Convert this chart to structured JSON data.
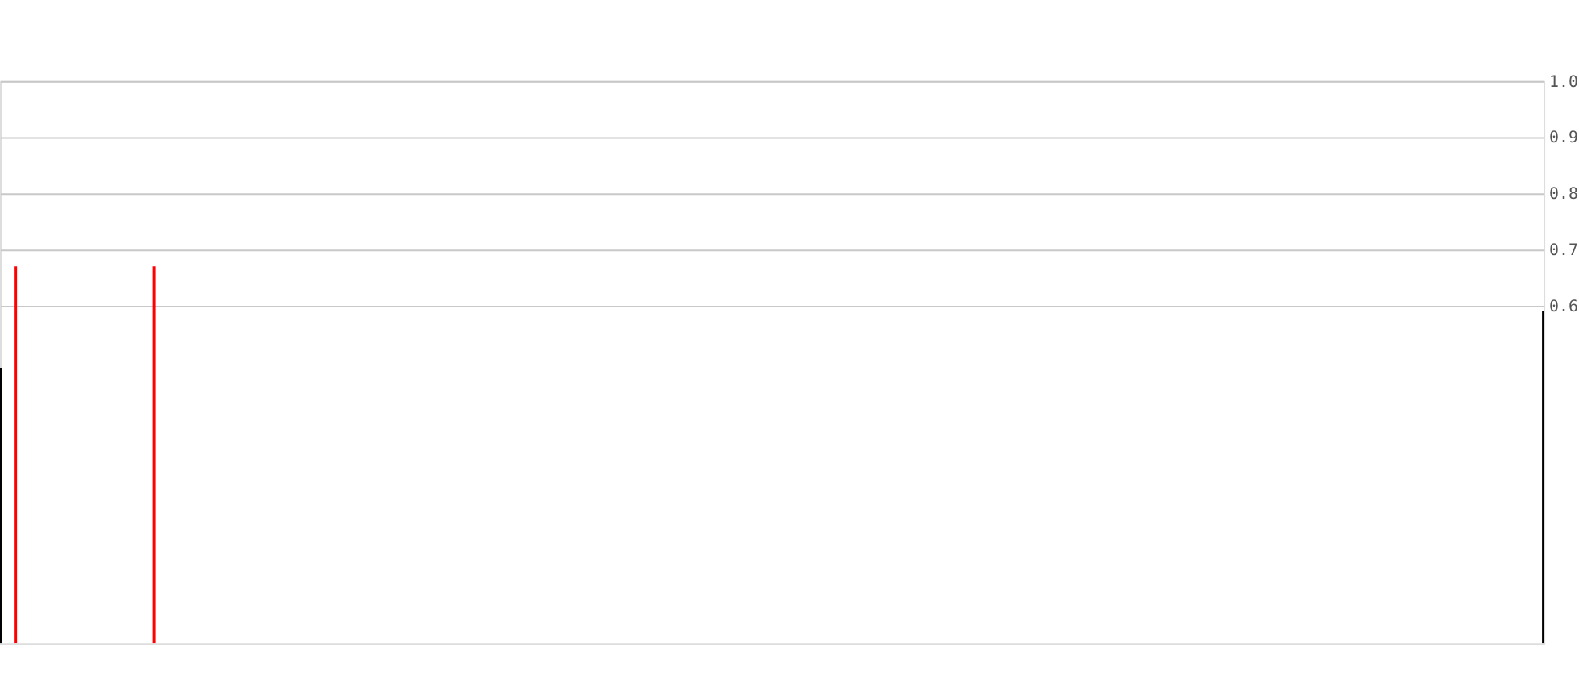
{
  "chart_data": {
    "type": "bar",
    "categories": [
      null,
      null,
      null,
      null,
      null,
      null,
      null,
      null,
      null,
      null,
      null,
      null,
      null,
      null,
      null,
      null,
      null,
      null,
      null,
      null,
      null,
      null,
      null,
      null,
      null,
      null,
      null,
      null,
      null,
      null,
      null,
      null,
      null,
      null,
      null,
      null,
      null,
      null,
      null,
      null,
      null,
      null,
      null,
      null,
      null,
      null,
      null,
      null,
      null,
      null,
      null,
      null,
      null,
      null,
      null,
      null,
      null,
      null,
      null,
      null,
      null,
      null,
      null,
      null,
      null,
      null,
      null,
      null,
      null,
      null,
      null,
      null,
      null,
      null,
      null,
      null,
      null,
      null,
      null,
      null,
      null,
      null,
      null,
      null,
      null,
      null,
      null,
      null,
      null,
      null,
      null,
      null,
      null,
      null,
      null,
      null,
      null,
      null,
      null,
      null,
      null
    ],
    "values": [
      0.49,
      0.67,
      null,
      null,
      null,
      null,
      null,
      null,
      null,
      null,
      0.67,
      null,
      null,
      null,
      null,
      null,
      null,
      null,
      null,
      null,
      null,
      null,
      null,
      null,
      null,
      null,
      null,
      null,
      null,
      null,
      null,
      null,
      null,
      null,
      null,
      null,
      null,
      null,
      null,
      null,
      null,
      null,
      null,
      null,
      null,
      null,
      null,
      null,
      null,
      null,
      null,
      null,
      null,
      null,
      null,
      null,
      null,
      null,
      null,
      null,
      null,
      null,
      null,
      null,
      null,
      null,
      null,
      null,
      null,
      null,
      null,
      null,
      null,
      null,
      null,
      null,
      null,
      null,
      null,
      null,
      null,
      null,
      null,
      null,
      null,
      null,
      null,
      null,
      null,
      null,
      null,
      null,
      null,
      null,
      null,
      null,
      null,
      null,
      null,
      null,
      0.59
    ],
    "colors": [
      "#000000",
      "#ff0000",
      null,
      null,
      null,
      null,
      null,
      null,
      null,
      null,
      "#ff0000",
      null,
      null,
      null,
      null,
      null,
      null,
      null,
      null,
      null,
      null,
      null,
      null,
      null,
      null,
      null,
      null,
      null,
      null,
      null,
      null,
      null,
      null,
      null,
      null,
      null,
      null,
      null,
      null,
      null,
      null,
      null,
      null,
      null,
      null,
      null,
      null,
      null,
      null,
      null,
      null,
      null,
      null,
      null,
      null,
      null,
      null,
      null,
      null,
      null,
      null,
      null,
      null,
      null,
      null,
      null,
      null,
      null,
      null,
      null,
      null,
      null,
      null,
      null,
      null,
      null,
      null,
      null,
      null,
      null,
      null,
      null,
      null,
      null,
      null,
      null,
      null,
      null,
      null,
      null,
      null,
      null,
      null,
      null,
      null,
      null,
      null,
      null,
      null,
      null,
      "#000000"
    ],
    "ylim": [
      0,
      1.0
    ],
    "yticks": [
      0.6,
      0.7,
      0.8,
      0.9,
      {
        "value": 1.0,
        "label": "1.0"
      }
    ],
    "grid": "y",
    "tick_labels": "y"
  }
}
